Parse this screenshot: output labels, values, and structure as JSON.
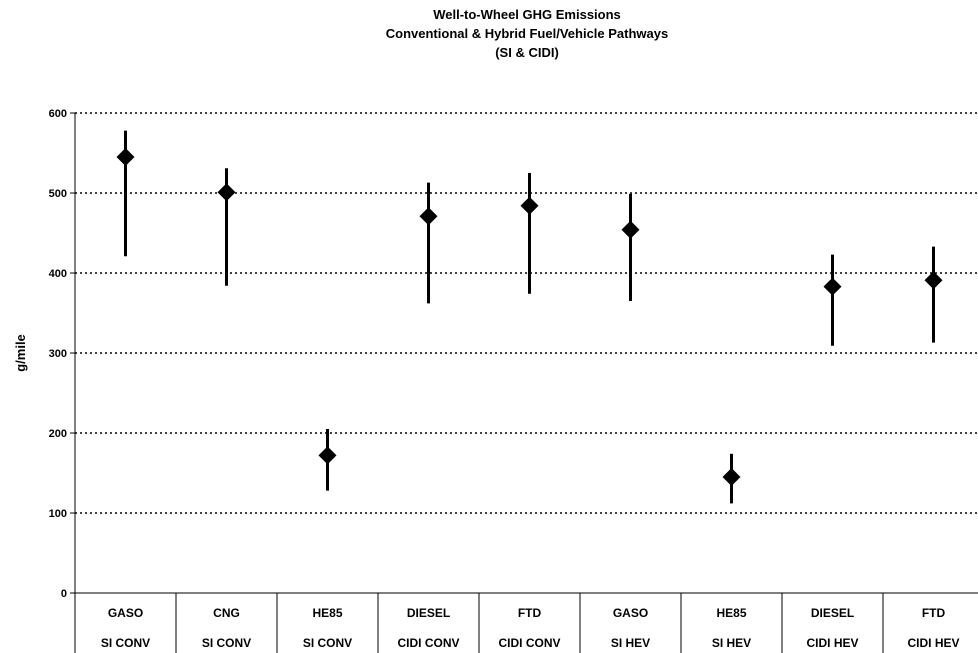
{
  "chart_data": {
    "type": "scatter",
    "title_lines": [
      "Well-to-Wheel GHG Emissions",
      "Conventional & Hybrid Fuel/Vehicle Pathways",
      "(SI & CIDI)"
    ],
    "ylabel": "g/mile",
    "ylim": [
      0,
      600
    ],
    "yticks": [
      0,
      100,
      200,
      300,
      400,
      500,
      600
    ],
    "grid": "horizontal-dotted",
    "legend": "none",
    "marker": "diamond",
    "marker_color": "#000000",
    "categories": [
      {
        "fuel": "GASO",
        "vehicle": "SI CONV"
      },
      {
        "fuel": "CNG",
        "vehicle": "SI CONV"
      },
      {
        "fuel": "HE85",
        "vehicle": "SI CONV"
      },
      {
        "fuel": "DIESEL",
        "vehicle": "CIDI CONV"
      },
      {
        "fuel": "FTD",
        "vehicle": "CIDI CONV"
      },
      {
        "fuel": "GASO",
        "vehicle": "SI HEV"
      },
      {
        "fuel": "HE85",
        "vehicle": "SI HEV"
      },
      {
        "fuel": "DIESEL",
        "vehicle": "CIDI HEV"
      },
      {
        "fuel": "FTD",
        "vehicle": "CIDI HEV"
      }
    ],
    "values": [
      545,
      501,
      172,
      471,
      484,
      454,
      145,
      383,
      391
    ],
    "low": [
      421,
      384,
      128,
      362,
      374,
      365,
      112,
      309,
      313
    ],
    "high": [
      578,
      531,
      205,
      513,
      525,
      499,
      174,
      423,
      433
    ]
  }
}
